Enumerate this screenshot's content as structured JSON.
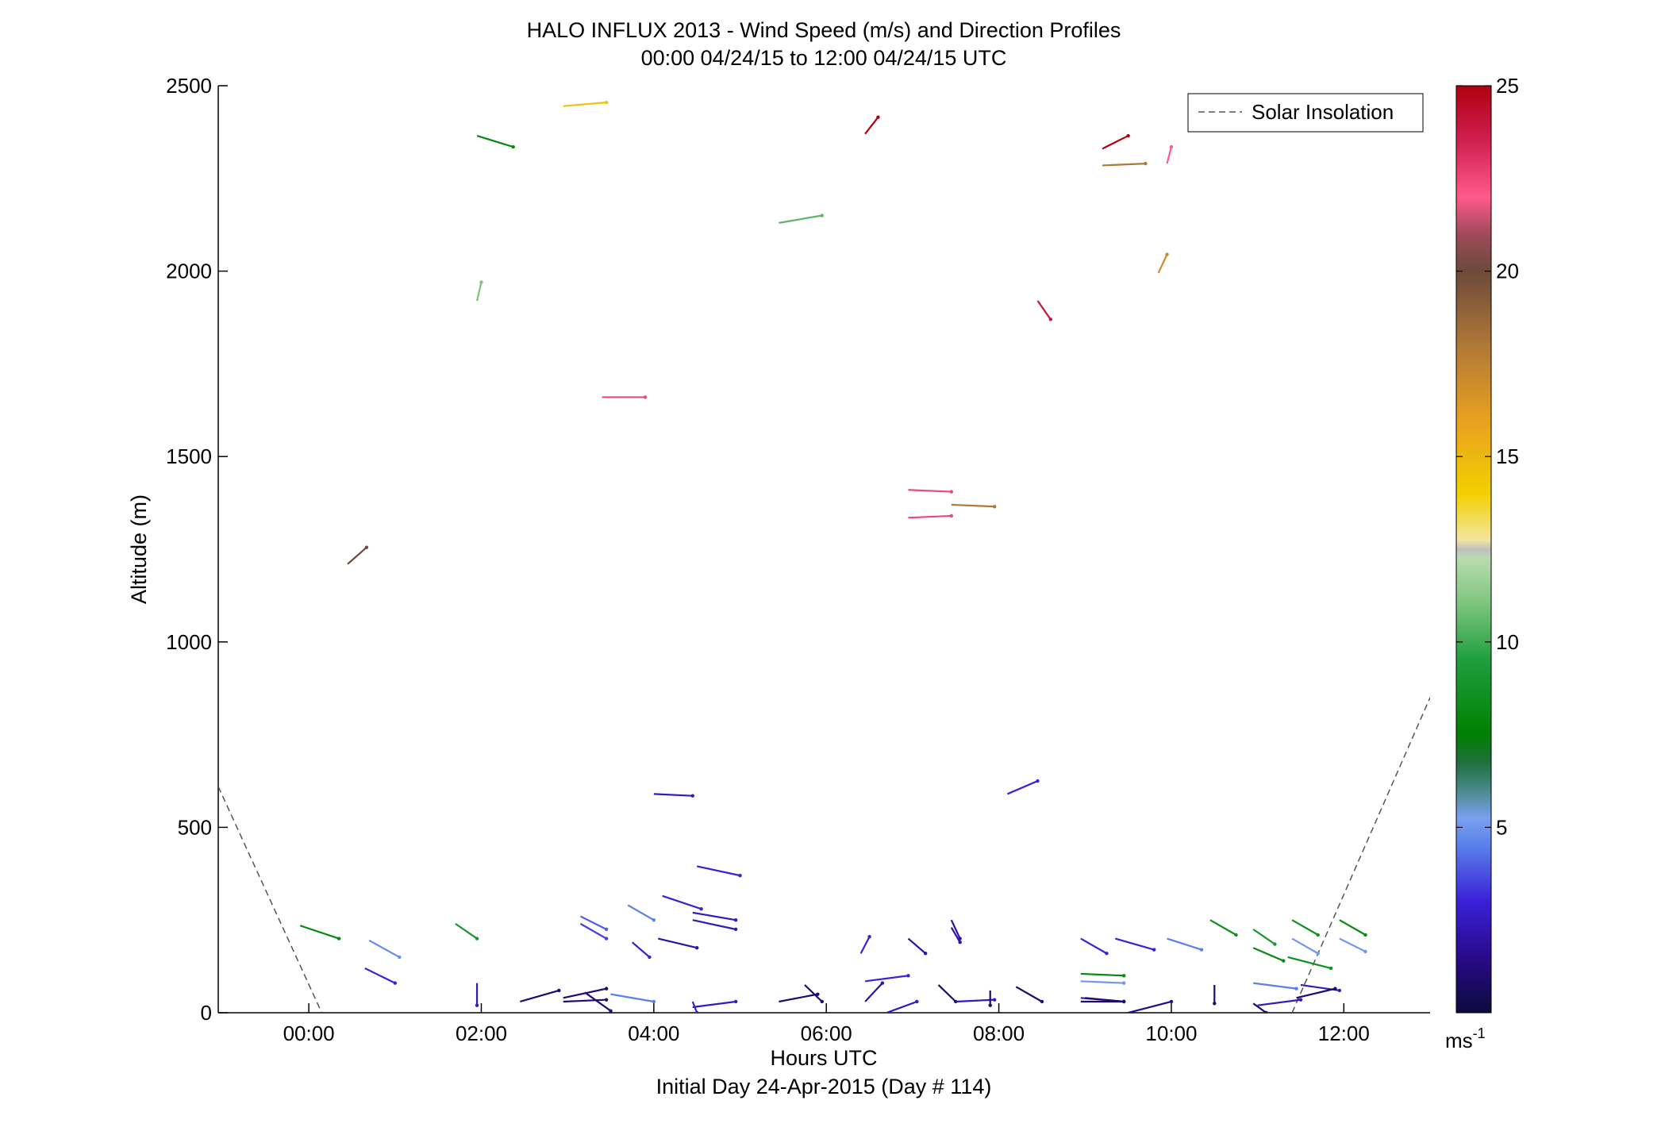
{
  "chart_data": {
    "type": "scatter",
    "title": "HALO INFLUX 2013 - Wind Speed (m/s) and Direction Profiles",
    "subtitle": "00:00 04/24/15 to 12:00 04/24/15  UTC",
    "xlabel": "Hours UTC",
    "xlabel2": "Initial Day 24-Apr-2015 (Day # 114)",
    "ylabel": "Altitude (m)",
    "xlim": [
      -1.05,
      13.0
    ],
    "ylim": [
      0,
      2500
    ],
    "x_ticks": [
      0,
      2,
      4,
      6,
      8,
      10,
      12
    ],
    "x_tick_labels": [
      "00:00",
      "02:00",
      "04:00",
      "06:00",
      "08:00",
      "10:00",
      "12:00"
    ],
    "y_ticks": [
      0,
      500,
      1000,
      1500,
      2000,
      2500
    ],
    "y_tick_labels": [
      "0",
      "500",
      "1000",
      "1500",
      "2000",
      "2500"
    ],
    "grid": false,
    "legend": {
      "position": "top-right",
      "entries": [
        "Solar Insolation"
      ]
    },
    "colorbar": {
      "label": "ms-1",
      "label_base": "ms",
      "label_exp": "-1",
      "range": [
        0,
        25
      ],
      "ticks": [
        5,
        10,
        15,
        20,
        25
      ],
      "tick_labels": [
        "5",
        "10",
        "15",
        "20",
        "25"
      ]
    },
    "solar_insolation": {
      "name": "Solar Insolation",
      "segments": [
        [
          [
            -1.05,
            610
          ],
          [
            0.15,
            0
          ]
        ],
        [
          [
            11.4,
            0
          ],
          [
            13.0,
            850
          ]
        ]
      ]
    },
    "series": [
      {
        "name": "",
        "columns": [
          "time_h",
          "altitude_m",
          "speed_ms",
          "dx_h",
          "dy_m"
        ],
        "vectors": [
          [
            0.45,
            1210,
            20.0,
            0.22,
            45
          ],
          [
            -0.1,
            235,
            8.0,
            0.45,
            -35
          ],
          [
            0.7,
            195,
            4.8,
            0.35,
            -45
          ],
          [
            0.65,
            120,
            3.0,
            0.35,
            -40
          ],
          [
            1.95,
            2365,
            8.0,
            0.42,
            -30
          ],
          [
            1.95,
            1920,
            11.0,
            0.05,
            50
          ],
          [
            1.7,
            240,
            9.0,
            0.25,
            -40
          ],
          [
            1.95,
            80,
            2.5,
            0.0,
            -60
          ],
          [
            2.95,
            2445,
            14.5,
            0.5,
            10
          ],
          [
            3.4,
            1660,
            22.5,
            0.5,
            0
          ],
          [
            2.45,
            30,
            1.0,
            0.45,
            30
          ],
          [
            2.95,
            30,
            1.2,
            0.5,
            5
          ],
          [
            2.95,
            40,
            1.0,
            0.5,
            25
          ],
          [
            3.2,
            55,
            1.0,
            0.3,
            -50
          ],
          [
            3.15,
            260,
            4.0,
            0.3,
            -35
          ],
          [
            3.15,
            240,
            3.5,
            0.3,
            -40
          ],
          [
            3.5,
            50,
            4.5,
            0.5,
            -20
          ],
          [
            3.7,
            290,
            4.5,
            0.3,
            -40
          ],
          [
            3.75,
            190,
            3.0,
            0.2,
            -40
          ],
          [
            4.0,
            590,
            2.5,
            0.45,
            -5
          ],
          [
            4.1,
            315,
            3.0,
            0.45,
            -35
          ],
          [
            4.05,
            200,
            2.0,
            0.45,
            -25
          ],
          [
            4.45,
            270,
            2.5,
            0.5,
            -20
          ],
          [
            4.45,
            250,
            2.5,
            0.5,
            -25
          ],
          [
            4.5,
            395,
            3.0,
            0.5,
            -25
          ],
          [
            4.45,
            15,
            2.5,
            0.5,
            15
          ],
          [
            4.45,
            30,
            3.0,
            0.05,
            -30
          ],
          [
            5.45,
            2130,
            10.5,
            0.5,
            20
          ],
          [
            5.45,
            30,
            1.0,
            0.45,
            20
          ],
          [
            5.75,
            75,
            1.0,
            0.2,
            -45
          ],
          [
            6.45,
            2370,
            25.0,
            0.15,
            45
          ],
          [
            6.4,
            160,
            3.0,
            0.1,
            45
          ],
          [
            6.45,
            85,
            3.0,
            0.5,
            15
          ],
          [
            6.45,
            30,
            2.0,
            0.2,
            50
          ],
          [
            6.7,
            0,
            2.5,
            0.35,
            30
          ],
          [
            6.95,
            1410,
            22.5,
            0.5,
            -5
          ],
          [
            6.95,
            1335,
            22.5,
            0.5,
            5
          ],
          [
            7.45,
            1370,
            18.0,
            0.5,
            -5
          ],
          [
            6.95,
            200,
            2.0,
            0.2,
            -40
          ],
          [
            7.45,
            250,
            2.0,
            0.1,
            -50
          ],
          [
            7.45,
            230,
            2.0,
            0.1,
            -40
          ],
          [
            7.3,
            75,
            1.0,
            0.2,
            -45
          ],
          [
            7.5,
            30,
            2.5,
            0.45,
            5
          ],
          [
            7.9,
            60,
            1.0,
            0.0,
            -40
          ],
          [
            8.45,
            1920,
            24.0,
            0.15,
            -50
          ],
          [
            8.1,
            590,
            3.0,
            0.35,
            35
          ],
          [
            8.2,
            70,
            1.0,
            0.3,
            -40
          ],
          [
            9.2,
            2330,
            25.0,
            0.3,
            35
          ],
          [
            9.2,
            2285,
            18.0,
            0.5,
            5
          ],
          [
            9.95,
            2290,
            22.0,
            0.05,
            45
          ],
          [
            9.85,
            1995,
            17.0,
            0.1,
            50
          ],
          [
            8.95,
            200,
            3.0,
            0.3,
            -40
          ],
          [
            9.35,
            200,
            3.0,
            0.45,
            -30
          ],
          [
            9.95,
            200,
            4.5,
            0.4,
            -30
          ],
          [
            8.95,
            105,
            8.0,
            0.5,
            -5
          ],
          [
            8.95,
            85,
            5.0,
            0.5,
            -5
          ],
          [
            8.95,
            40,
            2.5,
            0.5,
            -10
          ],
          [
            8.95,
            30,
            1.0,
            0.5,
            0
          ],
          [
            9.0,
            40,
            1.0,
            0.45,
            -10
          ],
          [
            9.5,
            0,
            1.5,
            0.5,
            30
          ],
          [
            10.45,
            250,
            8.5,
            0.3,
            -40
          ],
          [
            10.5,
            75,
            1.0,
            0.0,
            -50
          ],
          [
            10.95,
            225,
            9.0,
            0.25,
            -40
          ],
          [
            10.95,
            175,
            8.0,
            0.35,
            -35
          ],
          [
            10.95,
            80,
            4.5,
            0.5,
            -15
          ],
          [
            10.95,
            25,
            1.0,
            0.15,
            -25
          ],
          [
            11.0,
            20,
            2.5,
            0.5,
            15
          ],
          [
            11.4,
            250,
            8.5,
            0.3,
            -40
          ],
          [
            11.4,
            200,
            5.0,
            0.3,
            -40
          ],
          [
            11.35,
            150,
            8.5,
            0.5,
            -30
          ],
          [
            11.5,
            75,
            2.5,
            0.45,
            -15
          ],
          [
            11.45,
            40,
            1.0,
            0.45,
            25
          ],
          [
            11.95,
            250,
            8.0,
            0.3,
            -40
          ],
          [
            11.95,
            200,
            5.0,
            0.3,
            -35
          ]
        ]
      }
    ]
  }
}
